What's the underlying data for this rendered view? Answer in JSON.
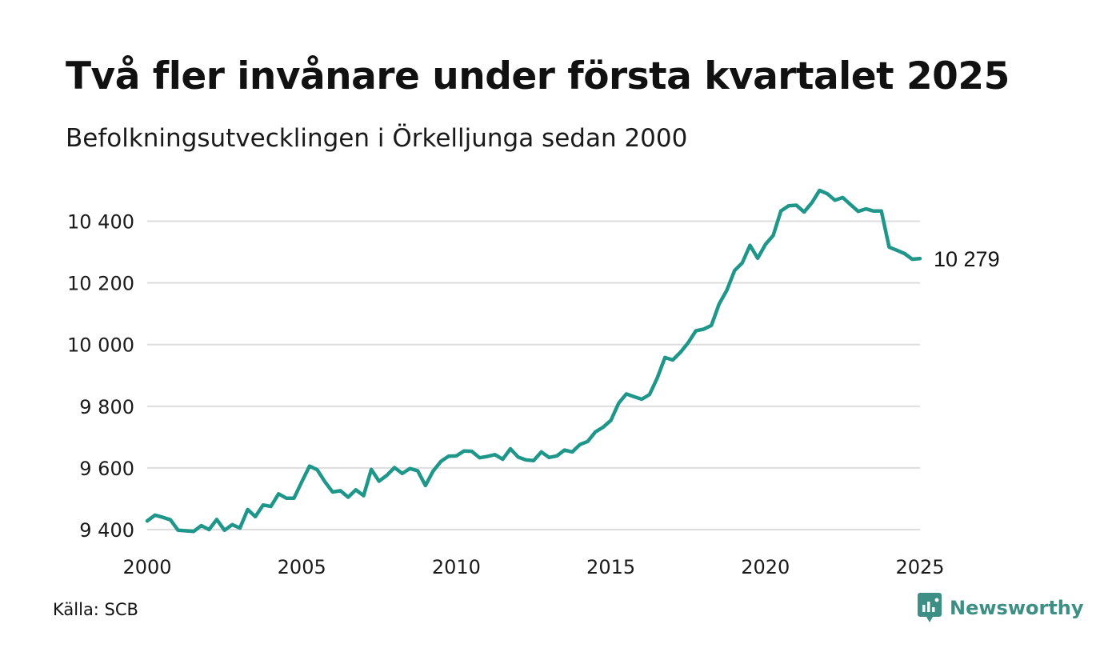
{
  "chart_data": {
    "type": "line",
    "title": "Två fler invånare under första kvartalet 2025",
    "subtitle": "Befolkningsutvecklingen i Örkelljunga sedan 2000",
    "xlim": [
      2000,
      2025
    ],
    "ylim": [
      9400,
      10500
    ],
    "x_ticks": [
      2000,
      2005,
      2010,
      2015,
      2020,
      2025
    ],
    "x_tick_labels": [
      "2000",
      "2005",
      "2010",
      "2015",
      "2020",
      "2025"
    ],
    "y_ticks": [
      9400,
      9600,
      9800,
      10000,
      10200,
      10400
    ],
    "y_tick_labels": [
      "9 400",
      "9 600",
      "9 800",
      "10 000",
      "10 200",
      "10 400"
    ],
    "grid": true,
    "line_color": "#1f968a",
    "end_label": "10 279",
    "series": [
      {
        "x": [
          "2000Q1",
          "2000Q2",
          "2000Q3",
          "2000Q4",
          "2001Q1",
          "2001Q2",
          "2001Q3",
          "2001Q4",
          "2002Q1",
          "2002Q2",
          "2002Q3",
          "2002Q4",
          "2003Q1",
          "2003Q2",
          "2003Q3",
          "2003Q4",
          "2004Q1",
          "2004Q2",
          "2004Q3",
          "2004Q4",
          "2005Q1",
          "2005Q2",
          "2005Q3",
          "2005Q4",
          "2006Q1",
          "2006Q2",
          "2006Q3",
          "2006Q4",
          "2007Q1",
          "2007Q2",
          "2007Q3",
          "2007Q4",
          "2008Q1",
          "2008Q2",
          "2008Q3",
          "2008Q4",
          "2009Q1",
          "2009Q2",
          "2009Q3",
          "2009Q4",
          "2010Q1",
          "2010Q2",
          "2010Q3",
          "2010Q4",
          "2011Q1",
          "2011Q2",
          "2011Q3",
          "2011Q4",
          "2012Q1",
          "2012Q2",
          "2012Q3",
          "2012Q4",
          "2013Q1",
          "2013Q2",
          "2013Q3",
          "2013Q4",
          "2014Q1",
          "2014Q2",
          "2014Q3",
          "2014Q4",
          "2015Q1",
          "2015Q2",
          "2015Q3",
          "2015Q4",
          "2016Q1",
          "2016Q2",
          "2016Q3",
          "2016Q4",
          "2017Q1",
          "2017Q2",
          "2017Q3",
          "2017Q4",
          "2018Q1",
          "2018Q2",
          "2018Q3",
          "2018Q4",
          "2019Q1",
          "2019Q2",
          "2019Q3",
          "2019Q4",
          "2020Q1",
          "2020Q2",
          "2020Q3",
          "2020Q4",
          "2021Q1",
          "2021Q2",
          "2021Q3",
          "2021Q4",
          "2022Q1",
          "2022Q2",
          "2022Q3",
          "2022Q4",
          "2023Q1",
          "2023Q2",
          "2023Q3",
          "2023Q4",
          "2024Q1",
          "2024Q2",
          "2024Q3",
          "2024Q4",
          "2025Q1"
        ],
        "values": [
          9428,
          9447,
          9440,
          9432,
          9398,
          9396,
          9394,
          9413,
          9400,
          9433,
          9398,
          9416,
          9405,
          9465,
          9442,
          9480,
          9475,
          9516,
          9502,
          9502,
          9555,
          9606,
          9594,
          9555,
          9522,
          9526,
          9505,
          9529,
          9510,
          9595,
          9557,
          9576,
          9601,
          9582,
          9598,
          9591,
          9543,
          9590,
          9621,
          9638,
          9639,
          9655,
          9654,
          9633,
          9637,
          9643,
          9628,
          9662,
          9635,
          9626,
          9624,
          9652,
          9634,
          9639,
          9658,
          9652,
          9676,
          9686,
          9717,
          9732,
          9754,
          9810,
          9840,
          9831,
          9823,
          9838,
          9892,
          9958,
          9950,
          9975,
          10006,
          10045,
          10050,
          10062,
          10131,
          10176,
          10240,
          10265,
          10322,
          10280,
          10325,
          10354,
          10433,
          10450,
          10452,
          10430,
          10460,
          10500,
          10489,
          10468,
          10477,
          10454,
          10432,
          10440,
          10433,
          10433,
          10316,
          10306,
          10295,
          10277,
          10279
        ]
      }
    ]
  },
  "footer": {
    "source": "Källa: SCB",
    "brand": "Newsworthy"
  }
}
